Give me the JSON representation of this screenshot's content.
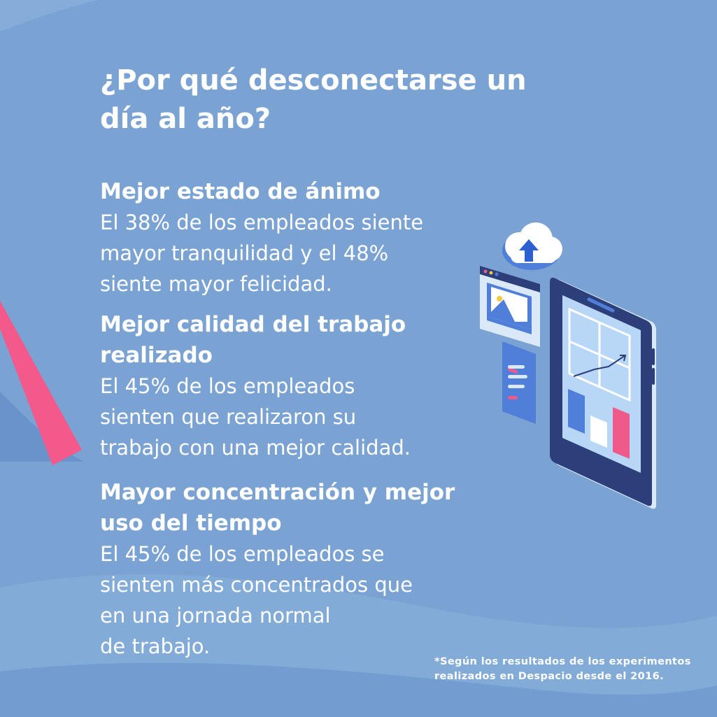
{
  "title": "¿Por qué desconectarse un día al año?",
  "sections": [
    {
      "heading": "Mejor estado de ánimo",
      "body": "El 38% de los empleados siente\nmayor tranquilidad y el 48%\nsiente mayor felicidad."
    },
    {
      "heading": "Mejor calidad del trabajo realizado",
      "body": "El 45% de los empleados\nsienten que realizaron su\ntrabajo con una mejor calidad."
    },
    {
      "heading": "Mayor concentración y mejor uso del tiempo",
      "body": "El 45% de los empleados se\nsienten más concentrados que\nen una jornada normal\nde trabajo."
    }
  ],
  "footnote": "*Según los resultados de los experimentos\nrealizados en Despacio desde el 2016.",
  "colors": {
    "background": "#7aa3d4",
    "accent_pink": "#f05a8a",
    "device_dark": "#2c3f7a",
    "screen": "#b8d6f5",
    "bar_blue": "#4f7fd8",
    "bar_white": "#ffffff",
    "bar_pink": "#f05a8a"
  },
  "icons": [
    "cloud-upload-icon",
    "image-window-icon",
    "list-card-icon",
    "tablet-chart-icon"
  ]
}
